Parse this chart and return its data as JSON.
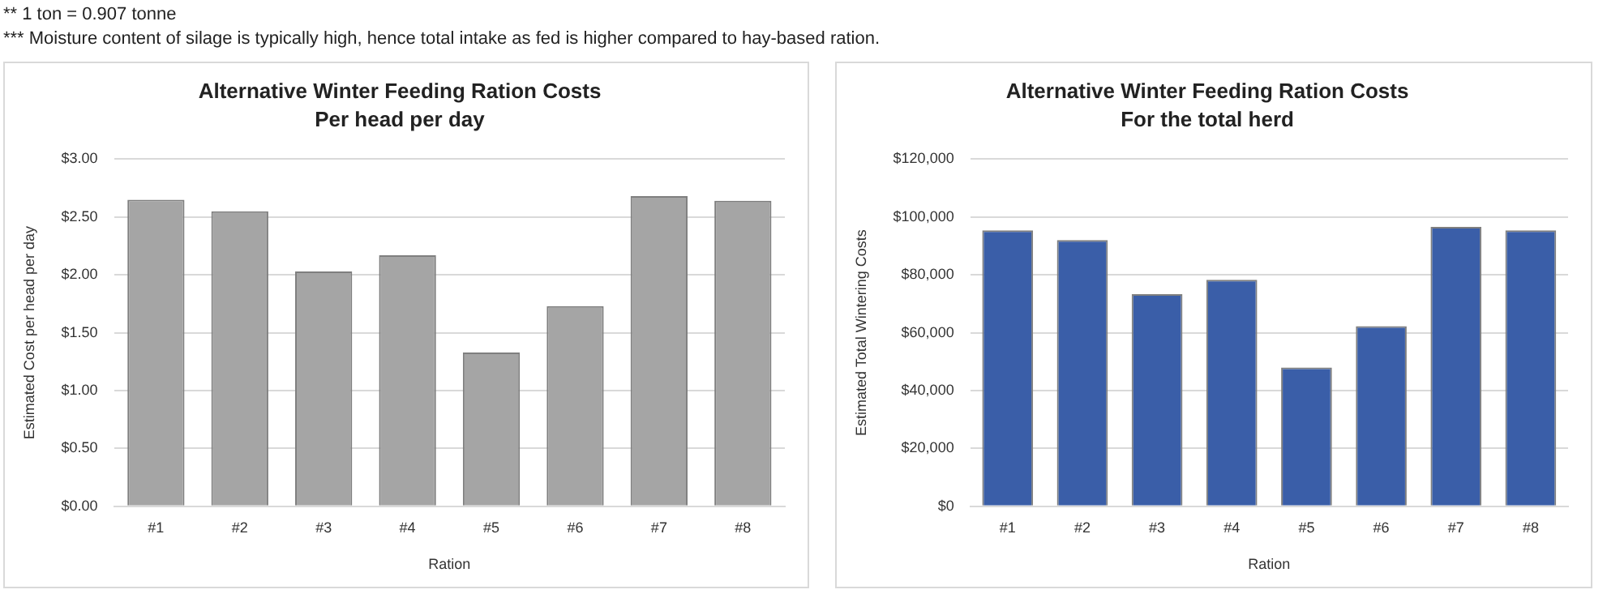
{
  "chart_data": [
    {
      "type": "bar",
      "title": "Alternative Winter Feeding Ration Costs",
      "subtitle": "Per head per day",
      "xlabel": "Ration",
      "ylabel": "Estimated Cost per head per day",
      "annotations": [
        "** 1 ton = 0.907 tonne",
        "*** Moisture content of silage is typically high, hence total intake as fed is higher compared to hay-based ration."
      ],
      "categories": [
        "#1",
        "#2",
        "#3",
        "#4",
        "#5",
        "#6",
        "#7",
        "#8"
      ],
      "series": [
        {
          "color": "#a5a5a5",
          "values": [
            2.65,
            2.55,
            2.03,
            2.17,
            1.33,
            1.73,
            2.68,
            2.64
          ]
        }
      ],
      "ylim": [
        0,
        3
      ],
      "yticks": [
        {
          "value": 0,
          "label": "$0.00"
        },
        {
          "value": 0.5,
          "label": "$0.50"
        },
        {
          "value": 1,
          "label": "$1.00"
        },
        {
          "value": 1.5,
          "label": "$1.50"
        },
        {
          "value": 2,
          "label": "$2.00"
        },
        {
          "value": 2.5,
          "label": "$2.50"
        },
        {
          "value": 3,
          "label": "$3.00"
        }
      ],
      "grid": "y"
    },
    {
      "type": "bar",
      "title": "Alternative Winter Feeding Ration Costs",
      "subtitle": "For the total herd",
      "xlabel": "Ration",
      "ylabel": "Estimated Total Wintering Costs",
      "categories": [
        "#1",
        "#2",
        "#3",
        "#4",
        "#5",
        "#6",
        "#7",
        "#8"
      ],
      "series": [
        {
          "color": "#3a5ea8",
          "values": [
            95400,
            92000,
            73300,
            78300,
            48000,
            62300,
            96600,
            95400
          ]
        }
      ],
      "ylim": [
        0,
        120000
      ],
      "yticks": [
        {
          "value": 0,
          "label": "$0"
        },
        {
          "value": 20000,
          "label": "$20,000"
        },
        {
          "value": 40000,
          "label": "$40,000"
        },
        {
          "value": 60000,
          "label": "$60,000"
        },
        {
          "value": 80000,
          "label": "$80,000"
        },
        {
          "value": 100000,
          "label": "$100,000"
        },
        {
          "value": 120000,
          "label": "$120,000"
        }
      ],
      "grid": "y"
    }
  ]
}
